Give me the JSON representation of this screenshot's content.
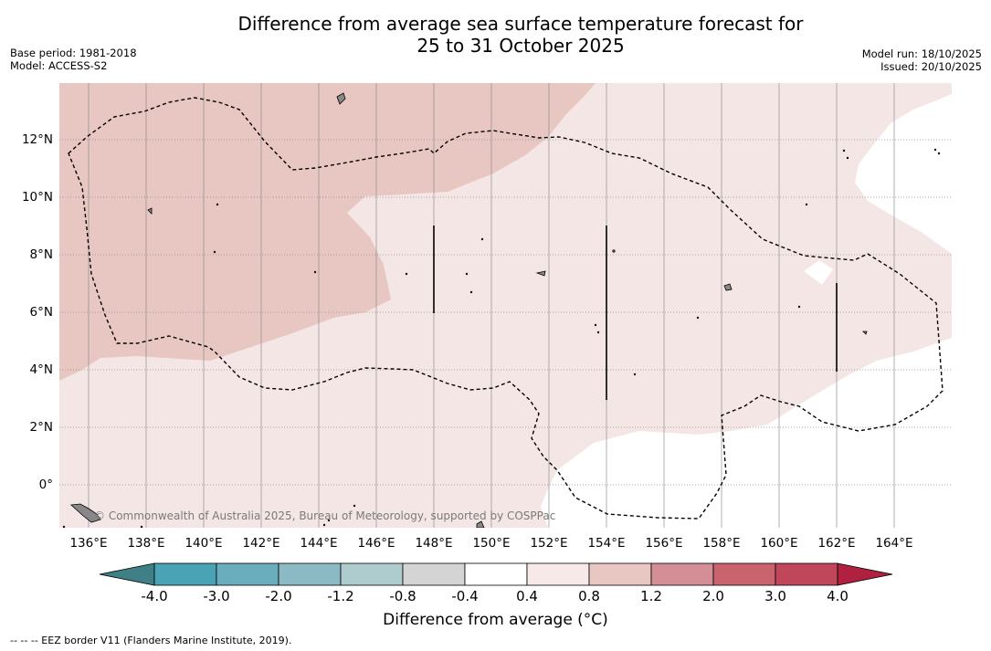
{
  "header": {
    "title_line1": "Difference from average sea surface temperature forecast for",
    "title_line2": "25 to 31 October 2025",
    "base_period": "Base period: 1981-2018",
    "model": "Model: ACCESS-S2",
    "model_run": "Model run: 18/10/2025",
    "issued": "Issued: 20/10/2025"
  },
  "map": {
    "lat_labels": [
      "12°N",
      "10°N",
      "8°N",
      "6°N",
      "4°N",
      "2°N",
      "0°"
    ],
    "lon_labels": [
      "136°E",
      "138°E",
      "140°E",
      "142°E",
      "144°E",
      "146°E",
      "148°E",
      "150°E",
      "152°E",
      "154°E",
      "156°E",
      "158°E",
      "160°E",
      "162°E",
      "164°E"
    ],
    "copyright": "© Commonwealth of Australia 2025, Bureau of Meteorology, supported by COSPPac",
    "colors": {
      "anomaly_0_8_to_1_2": "#e8c6c1",
      "anomaly_0_4_to_0_8": "#f4e6e4",
      "anomaly_-0_4_to_0_4": "#ffffff"
    }
  },
  "colorbar": {
    "title": "Difference from average (°C)",
    "tick_labels": [
      "-4.0",
      "-3.0",
      "-2.0",
      "-1.2",
      "-0.8",
      "-0.4",
      "0.4",
      "0.8",
      "1.2",
      "2.0",
      "3.0",
      "4.0"
    ],
    "colors": [
      "#3f7f86",
      "#4aa3b5",
      "#6aaebd",
      "#8bbac4",
      "#aecbce",
      "#d4d4d4",
      "#ffffff",
      "#f6e9e7",
      "#e8c6c1",
      "#d48e95",
      "#c9646f",
      "#c0475a",
      "#b0203f"
    ]
  },
  "footer": {
    "legend_text": "-- -- -- EEZ border V11 (Flanders Marine Institute, 2019)."
  }
}
